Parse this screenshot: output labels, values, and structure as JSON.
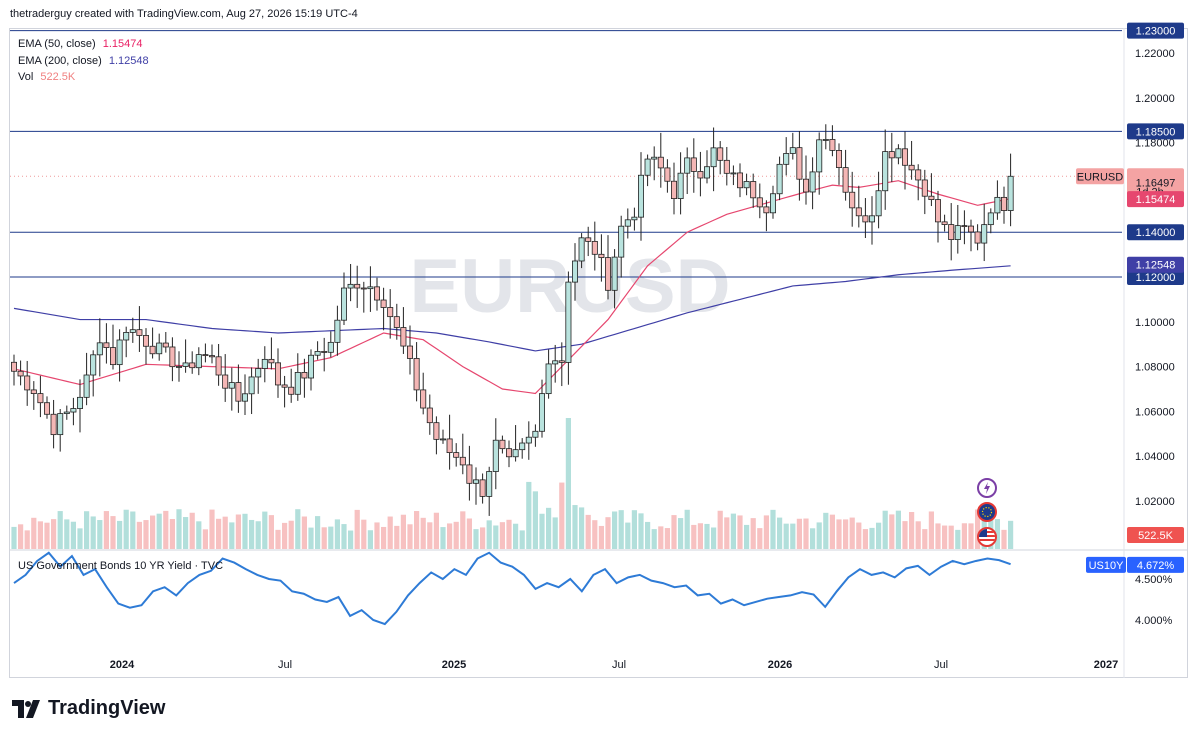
{
  "header": {
    "attribution": "thetraderguy created with TradingView.com, Aug 27, 2026 15:19 UTC-4"
  },
  "legend": [
    {
      "label": "EMA (50, close)",
      "value": "1.15474",
      "color": "#e91e63"
    },
    {
      "label": "EMA (200, close)",
      "value": "1.12548",
      "color": "#3f3fa6"
    },
    {
      "label": "Vol",
      "value": "522.5K",
      "color": "#f08080"
    }
  ],
  "watermark": "EURUSD",
  "subpane_title": "US Government Bonds 10 YR Yield · TVC",
  "brand": "TradingView",
  "colors": {
    "up": "#26a69a",
    "down": "#ef5350",
    "up_light": "#b2dfdb",
    "down_light": "#f7c1c1",
    "ema50": "#e6476f",
    "ema200": "#3f3fa6",
    "yield": "#2962ff",
    "level": "#1e3a8a"
  },
  "chart_data": [
    {
      "type": "candlestick",
      "symbol": "EURUSD",
      "timeframe": "weekly",
      "ylim": [
        1.01,
        1.235
      ],
      "x_ticks": [
        "2024",
        "Jul",
        "2025",
        "Jul",
        "2026",
        "Jul",
        "2027"
      ],
      "y_ticks": [
        "1.22000",
        "1.20000",
        "1.18000",
        "1.16000",
        "1.14000",
        "1.12000",
        "1.10000",
        "1.08000",
        "1.06000",
        "1.04000",
        "1.02000"
      ],
      "horizontal_levels": [
        1.23,
        1.185,
        1.14,
        1.12
      ],
      "level_labels": [
        "1.23000",
        "1.18500",
        "1.14000",
        "1.12000"
      ],
      "last_price": {
        "symbol": "EURUSD",
        "value": "1.16497",
        "countdown": "1d 2h"
      },
      "ema50_label": "1.15474",
      "ema200_label": "1.12548",
      "volume_label": "522.5K",
      "price_path": [
        [
          0,
          1.078
        ],
        [
          3,
          1.07
        ],
        [
          6,
          1.053
        ],
        [
          9,
          1.062
        ],
        [
          11,
          1.074
        ],
        [
          13,
          1.094
        ],
        [
          15,
          1.083
        ],
        [
          17,
          1.098
        ],
        [
          19,
          1.094
        ],
        [
          22,
          1.087
        ],
        [
          24,
          1.083
        ],
        [
          26,
          1.078
        ],
        [
          28,
          1.086
        ],
        [
          30,
          1.083
        ],
        [
          32,
          1.073
        ],
        [
          34,
          1.065
        ],
        [
          36,
          1.075
        ],
        [
          38,
          1.086
        ],
        [
          40,
          1.073
        ],
        [
          42,
          1.071
        ],
        [
          44,
          1.077
        ],
        [
          46,
          1.087
        ],
        [
          48,
          1.09
        ],
        [
          50,
          1.113
        ],
        [
          52,
          1.118
        ],
        [
          54,
          1.116
        ],
        [
          56,
          1.11
        ],
        [
          58,
          1.096
        ],
        [
          60,
          1.08
        ],
        [
          62,
          1.062
        ],
        [
          64,
          1.048
        ],
        [
          66,
          1.042
        ],
        [
          68,
          1.038
        ],
        [
          69,
          1.03
        ],
        [
          71,
          1.025
        ],
        [
          73,
          1.045
        ],
        [
          75,
          1.036
        ],
        [
          77,
          1.043
        ],
        [
          79,
          1.05
        ],
        [
          81,
          1.085
        ],
        [
          83,
          1.083
        ],
        [
          84,
          1.12
        ],
        [
          86,
          1.136
        ],
        [
          88,
          1.132
        ],
        [
          90,
          1.118
        ],
        [
          92,
          1.142
        ],
        [
          94,
          1.15
        ],
        [
          96,
          1.173
        ],
        [
          98,
          1.168
        ],
        [
          100,
          1.158
        ],
        [
          102,
          1.17
        ],
        [
          104,
          1.168
        ],
        [
          106,
          1.176
        ],
        [
          108,
          1.165
        ],
        [
          110,
          1.162
        ],
        [
          112,
          1.158
        ],
        [
          114,
          1.152
        ],
        [
          116,
          1.17
        ],
        [
          118,
          1.175
        ],
        [
          120,
          1.158
        ],
        [
          122,
          1.183
        ],
        [
          124,
          1.18
        ],
        [
          126,
          1.16
        ],
        [
          128,
          1.145
        ],
        [
          130,
          1.15
        ],
        [
          132,
          1.175
        ],
        [
          134,
          1.178
        ],
        [
          136,
          1.168
        ],
        [
          138,
          1.16
        ],
        [
          140,
          1.145
        ],
        [
          142,
          1.138
        ],
        [
          144,
          1.141
        ],
        [
          146,
          1.137
        ],
        [
          148,
          1.152
        ],
        [
          150,
          1.153
        ],
        [
          151,
          1.165
        ]
      ],
      "ema50": [
        [
          0,
          1.079
        ],
        [
          10,
          1.072
        ],
        [
          20,
          1.081
        ],
        [
          30,
          1.08
        ],
        [
          40,
          1.079
        ],
        [
          48,
          1.084
        ],
        [
          56,
          1.095
        ],
        [
          62,
          1.092
        ],
        [
          68,
          1.08
        ],
        [
          74,
          1.07
        ],
        [
          79,
          1.068
        ],
        [
          84,
          1.083
        ],
        [
          90,
          1.101
        ],
        [
          96,
          1.125
        ],
        [
          102,
          1.14
        ],
        [
          108,
          1.148
        ],
        [
          114,
          1.153
        ],
        [
          120,
          1.158
        ],
        [
          124,
          1.161
        ],
        [
          128,
          1.16
        ],
        [
          134,
          1.163
        ],
        [
          140,
          1.157
        ],
        [
          146,
          1.152
        ],
        [
          151,
          1.155
        ]
      ],
      "ema200": [
        [
          0,
          1.106
        ],
        [
          10,
          1.101
        ],
        [
          20,
          1.101
        ],
        [
          30,
          1.097
        ],
        [
          40,
          1.095
        ],
        [
          48,
          1.096
        ],
        [
          56,
          1.097
        ],
        [
          64,
          1.095
        ],
        [
          72,
          1.091
        ],
        [
          79,
          1.087
        ],
        [
          86,
          1.09
        ],
        [
          94,
          1.097
        ],
        [
          102,
          1.104
        ],
        [
          110,
          1.11
        ],
        [
          118,
          1.116
        ],
        [
          126,
          1.118
        ],
        [
          134,
          1.121
        ],
        [
          142,
          1.123
        ],
        [
          151,
          1.125
        ]
      ]
    },
    {
      "type": "line",
      "name": "US10Y",
      "last_label": "US10Y",
      "last_value": "4.672%",
      "ylim": [
        3.85,
        4.95
      ],
      "y_ticks": [
        "4.500%",
        "4.000%"
      ],
      "values": [
        4.45,
        4.55,
        4.72,
        4.82,
        4.65,
        4.78,
        4.55,
        4.62,
        4.4,
        4.2,
        4.15,
        4.18,
        4.35,
        4.4,
        4.3,
        4.45,
        4.55,
        4.6,
        4.75,
        4.7,
        4.62,
        4.55,
        4.5,
        4.48,
        4.35,
        4.32,
        4.25,
        4.22,
        4.28,
        4.05,
        4.12,
        4.0,
        3.95,
        4.1,
        4.3,
        4.45,
        4.58,
        4.5,
        4.62,
        4.55,
        4.75,
        4.82,
        4.7,
        4.65,
        4.55,
        4.38,
        4.45,
        4.4,
        4.5,
        4.35,
        4.55,
        4.62,
        4.45,
        4.52,
        4.55,
        4.48,
        4.45,
        4.4,
        4.42,
        4.3,
        4.32,
        4.2,
        4.25,
        4.18,
        4.22,
        4.26,
        4.28,
        4.3,
        4.34,
        4.31,
        4.16,
        4.35,
        4.52,
        4.62,
        4.55,
        4.58,
        4.52,
        4.63,
        4.66,
        4.55,
        4.65,
        4.72,
        4.68,
        4.72,
        4.75,
        4.73,
        4.68
      ],
      "x_end": 151
    }
  ]
}
